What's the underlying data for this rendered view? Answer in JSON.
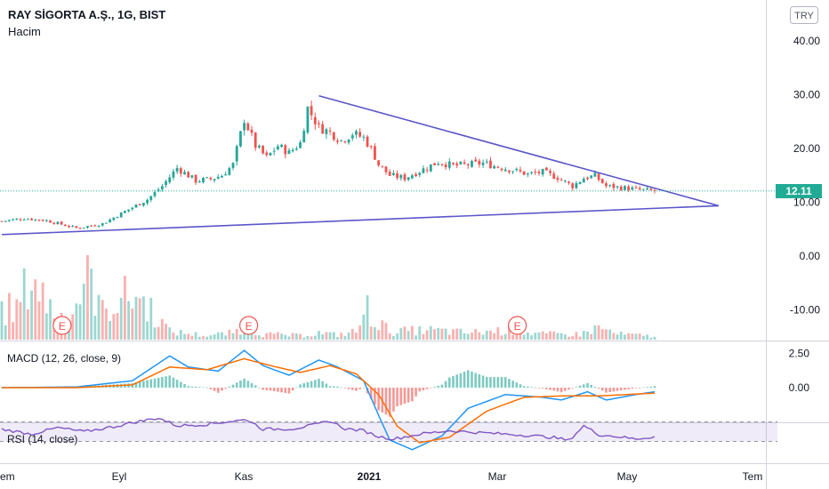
{
  "header": {
    "title": "RAY SİGORTA A.Ş., 1G, BIST",
    "volume_label": "Hacim",
    "currency": "TRY"
  },
  "price_tag": "12.11",
  "macd_label": "MACD (12, 26, close, 9)",
  "rsi_label": "RSI (14, close)",
  "colors": {
    "up": "#26a69a",
    "down": "#ef5350",
    "trend": "#5b57c9",
    "macd": "#2196f3",
    "signal": "#ff6d00",
    "rsi": "#7e57c2",
    "last_price": "#22ab94"
  },
  "chart_data": [
    {
      "type": "candlestick",
      "price_axis": {
        "ticks": [
          "40.00",
          "30.00",
          "20.00",
          "10.00",
          "0.00",
          "-10.00"
        ],
        "ylim": [
          -15,
          45
        ]
      },
      "x_labels": [
        "em",
        "Eyl",
        "Kas",
        "2021",
        "Mar",
        "May",
        "Tem"
      ],
      "last_price": 12.11,
      "price_path": [
        [
          0,
          6.5
        ],
        [
          6,
          7.0
        ],
        [
          12,
          6.6
        ],
        [
          20,
          5.2
        ],
        [
          27,
          6.0
        ],
        [
          33,
          8.3
        ],
        [
          39,
          10.5
        ],
        [
          43,
          13.0
        ],
        [
          47,
          16.4
        ],
        [
          52,
          14.0
        ],
        [
          56,
          14.3
        ],
        [
          59,
          15.0
        ],
        [
          62,
          17.0
        ],
        [
          65,
          25.5
        ],
        [
          68,
          20.5
        ],
        [
          71,
          18.3
        ],
        [
          74,
          20.5
        ],
        [
          77,
          19.2
        ],
        [
          80,
          21.0
        ],
        [
          82,
          27.5
        ],
        [
          85,
          24.0
        ],
        [
          88,
          23.0
        ],
        [
          91,
          21.5
        ],
        [
          94,
          22.8
        ],
        [
          97,
          22.0
        ],
        [
          99,
          20.0
        ],
        [
          101,
          17.0
        ],
        [
          104,
          15.0
        ],
        [
          108,
          14.5
        ],
        [
          112,
          15.8
        ],
        [
          117,
          17.5
        ],
        [
          121,
          16.8
        ],
        [
          125,
          17.0
        ],
        [
          129,
          17.3
        ],
        [
          133,
          16.6
        ],
        [
          137,
          16.0
        ],
        [
          141,
          15.2
        ],
        [
          145,
          15.6
        ],
        [
          149,
          14.6
        ],
        [
          153,
          13.0
        ],
        [
          156,
          14.5
        ],
        [
          159,
          14.9
        ],
        [
          162,
          13.0
        ],
        [
          165,
          12.8
        ],
        [
          168,
          12.6
        ],
        [
          171,
          12.3
        ],
        [
          175,
          12.11
        ]
      ],
      "trendlines": [
        {
          "from": [
            0,
            4.0
          ],
          "to": [
            185,
            11.0
          ]
        },
        {
          "from": [
            85,
            29.8
          ],
          "to": [
            185,
            11.0
          ]
        }
      ],
      "earnings_markers": [
        "E",
        "E",
        "E"
      ],
      "earnings_bars": [
        15,
        65,
        137
      ]
    },
    {
      "type": "bar",
      "name": "Hacim",
      "volume_path": [
        [
          0,
          0.45
        ],
        [
          4,
          0.45
        ],
        [
          8,
          0.95
        ],
        [
          12,
          0.55
        ],
        [
          18,
          0.25
        ],
        [
          23,
          1.0
        ],
        [
          27,
          0.4
        ],
        [
          31,
          0.6
        ],
        [
          36,
          0.65
        ],
        [
          40,
          0.45
        ],
        [
          45,
          0.12
        ],
        [
          55,
          0.06
        ],
        [
          62,
          0.1
        ],
        [
          65,
          0.2
        ],
        [
          70,
          0.08
        ],
        [
          80,
          0.06
        ],
        [
          85,
          0.1
        ],
        [
          90,
          0.07
        ],
        [
          95,
          0.12
        ],
        [
          98,
          0.45
        ],
        [
          100,
          0.3
        ],
        [
          104,
          0.12
        ],
        [
          115,
          0.14
        ],
        [
          125,
          0.1
        ],
        [
          135,
          0.14
        ],
        [
          145,
          0.08
        ],
        [
          155,
          0.08
        ],
        [
          160,
          0.18
        ],
        [
          165,
          0.08
        ],
        [
          175,
          0.05
        ]
      ]
    },
    {
      "type": "line",
      "title": "MACD (12, 26, close, 9)",
      "y_ticks": [
        "2.50",
        "0.00"
      ],
      "ylim": [
        -5.0,
        3.5
      ],
      "macd_path": [
        [
          0,
          0.0
        ],
        [
          20,
          0.05
        ],
        [
          35,
          0.5
        ],
        [
          45,
          2.3
        ],
        [
          50,
          1.5
        ],
        [
          58,
          1.2
        ],
        [
          65,
          2.7
        ],
        [
          70,
          1.6
        ],
        [
          77,
          0.9
        ],
        [
          85,
          2.0
        ],
        [
          90,
          1.5
        ],
        [
          97,
          0.5
        ],
        [
          101,
          -2.0
        ],
        [
          104,
          -3.8
        ],
        [
          110,
          -4.5
        ],
        [
          118,
          -3.5
        ],
        [
          125,
          -1.5
        ],
        [
          135,
          -0.5
        ],
        [
          145,
          -0.7
        ],
        [
          150,
          -0.9
        ],
        [
          157,
          -0.3
        ],
        [
          162,
          -0.9
        ],
        [
          170,
          -0.5
        ],
        [
          175,
          -0.3
        ]
      ],
      "signal_path": [
        [
          0,
          0.0
        ],
        [
          20,
          0.0
        ],
        [
          35,
          0.2
        ],
        [
          45,
          1.5
        ],
        [
          55,
          1.3
        ],
        [
          65,
          2.1
        ],
        [
          72,
          1.6
        ],
        [
          80,
          1.1
        ],
        [
          88,
          1.6
        ],
        [
          95,
          1.0
        ],
        [
          101,
          -0.5
        ],
        [
          106,
          -2.8
        ],
        [
          112,
          -4.0
        ],
        [
          120,
          -3.6
        ],
        [
          130,
          -1.7
        ],
        [
          140,
          -0.7
        ],
        [
          150,
          -0.6
        ],
        [
          160,
          -0.6
        ],
        [
          175,
          -0.4
        ]
      ]
    },
    {
      "type": "line",
      "title": "RSI (14, close)",
      "ylim": [
        0,
        100
      ],
      "bands": [
        30,
        70
      ],
      "rsi_path": [
        [
          0,
          55
        ],
        [
          8,
          45
        ],
        [
          15,
          58
        ],
        [
          22,
          50
        ],
        [
          30,
          60
        ],
        [
          36,
          70
        ],
        [
          42,
          78
        ],
        [
          47,
          62
        ],
        [
          55,
          65
        ],
        [
          62,
          72
        ],
        [
          66,
          74
        ],
        [
          70,
          55
        ],
        [
          78,
          56
        ],
        [
          84,
          64
        ],
        [
          88,
          72
        ],
        [
          92,
          56
        ],
        [
          97,
          52
        ],
        [
          101,
          40
        ],
        [
          105,
          35
        ],
        [
          112,
          45
        ],
        [
          120,
          52
        ],
        [
          128,
          48
        ],
        [
          135,
          45
        ],
        [
          142,
          42
        ],
        [
          148,
          38
        ],
        [
          152,
          32
        ],
        [
          156,
          62
        ],
        [
          160,
          44
        ],
        [
          165,
          40
        ],
        [
          170,
          35
        ],
        [
          175,
          40
        ]
      ]
    }
  ]
}
